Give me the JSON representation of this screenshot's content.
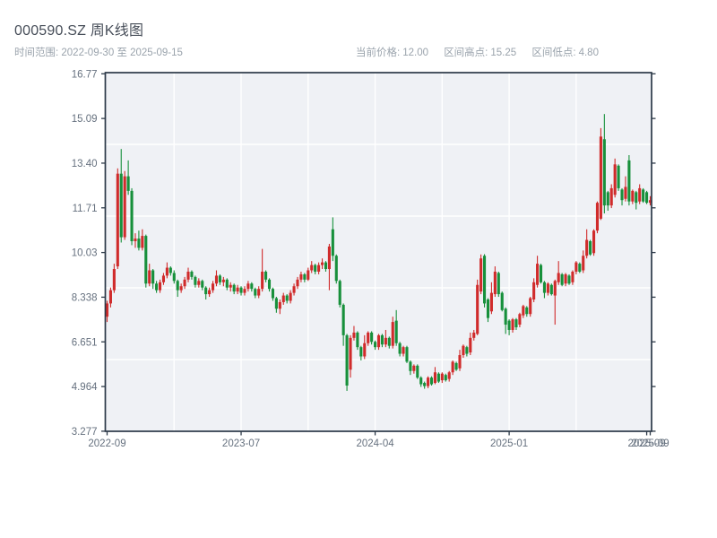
{
  "header": {
    "title": "000590.SZ 周K线图",
    "time_range": "时间范围: 2022-09-30 至 2025-09-15",
    "stats": [
      {
        "label": "当前价格:",
        "value": "12.00"
      },
      {
        "label": "区间高点:",
        "value": "15.25"
      },
      {
        "label": "区间低点:",
        "value": "4.80"
      }
    ]
  },
  "chart_data": {
    "type": "candlestick",
    "symbol": "000590.SZ",
    "interval": "weekly",
    "title": "000590.SZ 周K线图",
    "date_start": "2022-09-30",
    "date_end": "2025-09-15",
    "current_price": 12.0,
    "range_high": 15.25,
    "range_low": 4.8,
    "ylim": [
      3.277,
      16.77
    ],
    "y_tick_labels": [
      "16.77",
      "15.09",
      "13.40",
      "11.71",
      "10.03",
      "8.338",
      "6.651",
      "4.964",
      "3.277"
    ],
    "x_tick_labels": [
      "2022-09",
      "2023-07",
      "2024-04",
      "2025-01",
      "2025-09",
      "2025-09"
    ],
    "x_tick_indices": [
      0,
      38,
      76,
      114,
      153,
      154
    ],
    "x_grid_indices": [
      19,
      38,
      57,
      76,
      95,
      114,
      133
    ],
    "grid": true,
    "up_means": "close >= open (red, Chinese convention)",
    "colors": {
      "up": "#d02b2b",
      "down": "#17903b",
      "plot_bg": "#eff1f5",
      "grid": "#ffffff",
      "axis": "#2c3948",
      "tick_text": "#66717f",
      "title_text": "#474e59",
      "subtitle_text": "#9aa3ac"
    },
    "ohlc": [
      [
        7.6,
        8.2,
        7.4,
        8.1
      ],
      [
        8.1,
        8.7,
        7.95,
        8.6
      ],
      [
        8.6,
        9.6,
        8.5,
        9.4
      ],
      [
        9.5,
        13.2,
        9.4,
        13.0
      ],
      [
        13.0,
        13.93,
        10.4,
        10.6
      ],
      [
        10.6,
        13.1,
        10.5,
        12.9
      ],
      [
        12.9,
        13.5,
        12.2,
        12.35
      ],
      [
        12.35,
        12.45,
        10.3,
        10.45
      ],
      [
        10.45,
        10.75,
        10.2,
        10.55
      ],
      [
        10.55,
        10.85,
        10.1,
        10.2
      ],
      [
        10.2,
        10.9,
        10.1,
        10.65
      ],
      [
        10.65,
        10.7,
        8.7,
        8.85
      ],
      [
        8.85,
        9.6,
        8.75,
        9.35
      ],
      [
        9.35,
        9.4,
        8.65,
        8.85
      ],
      [
        8.85,
        8.95,
        8.5,
        8.6
      ],
      [
        8.6,
        9.0,
        8.5,
        8.9
      ],
      [
        8.9,
        9.25,
        8.8,
        9.15
      ],
      [
        9.15,
        9.65,
        9.05,
        9.45
      ],
      [
        9.45,
        9.5,
        9.15,
        9.25
      ],
      [
        9.25,
        9.35,
        8.85,
        8.95
      ],
      [
        8.95,
        9.0,
        8.35,
        8.6
      ],
      [
        8.6,
        8.85,
        8.5,
        8.75
      ],
      [
        8.75,
        9.1,
        8.65,
        9.0
      ],
      [
        9.0,
        9.45,
        8.9,
        9.3
      ],
      [
        9.3,
        9.35,
        9.0,
        9.1
      ],
      [
        9.1,
        9.15,
        8.7,
        8.8
      ],
      [
        8.8,
        9.05,
        8.7,
        8.95
      ],
      [
        8.95,
        9.0,
        8.6,
        8.7
      ],
      [
        8.7,
        8.75,
        8.25,
        8.45
      ],
      [
        8.45,
        8.7,
        8.35,
        8.6
      ],
      [
        8.6,
        8.95,
        8.5,
        8.85
      ],
      [
        8.85,
        9.35,
        8.75,
        9.15
      ],
      [
        9.15,
        9.2,
        8.8,
        8.9
      ],
      [
        8.9,
        9.1,
        8.75,
        9.0
      ],
      [
        9.0,
        9.05,
        8.6,
        8.7
      ],
      [
        8.7,
        8.9,
        8.55,
        8.8
      ],
      [
        8.8,
        8.85,
        8.45,
        8.55
      ],
      [
        8.55,
        8.8,
        8.45,
        8.7
      ],
      [
        8.7,
        8.75,
        8.4,
        8.5
      ],
      [
        8.5,
        8.75,
        8.4,
        8.65
      ],
      [
        8.65,
        8.95,
        8.55,
        8.85
      ],
      [
        8.85,
        8.9,
        8.55,
        8.65
      ],
      [
        8.65,
        8.7,
        8.3,
        8.4
      ],
      [
        8.4,
        8.75,
        8.3,
        8.65
      ],
      [
        8.65,
        10.16,
        8.55,
        9.3
      ],
      [
        9.3,
        9.35,
        8.9,
        9.0
      ],
      [
        9.0,
        9.05,
        8.55,
        8.65
      ],
      [
        8.65,
        8.7,
        8.2,
        8.3
      ],
      [
        8.3,
        8.35,
        7.75,
        7.9
      ],
      [
        7.9,
        8.25,
        7.7,
        8.15
      ],
      [
        8.15,
        8.5,
        8.05,
        8.4
      ],
      [
        8.4,
        8.45,
        8.1,
        8.2
      ],
      [
        8.2,
        8.6,
        8.1,
        8.5
      ],
      [
        8.5,
        8.85,
        8.4,
        8.75
      ],
      [
        8.75,
        9.1,
        8.65,
        9.0
      ],
      [
        9.0,
        9.3,
        8.9,
        9.2
      ],
      [
        9.2,
        9.25,
        8.9,
        9.0
      ],
      [
        9.0,
        9.45,
        8.95,
        9.35
      ],
      [
        9.35,
        9.7,
        9.25,
        9.55
      ],
      [
        9.55,
        9.6,
        9.2,
        9.3
      ],
      [
        9.3,
        9.65,
        9.2,
        9.55
      ],
      [
        9.55,
        9.8,
        9.4,
        9.65
      ],
      [
        9.65,
        9.7,
        9.3,
        9.4
      ],
      [
        9.4,
        10.35,
        8.6,
        10.25
      ],
      [
        10.9,
        11.35,
        9.7,
        9.9
      ],
      [
        9.9,
        9.95,
        8.85,
        8.95
      ],
      [
        8.95,
        9.0,
        7.95,
        8.05
      ],
      [
        8.05,
        8.1,
        6.5,
        6.9
      ],
      [
        6.9,
        6.95,
        4.8,
        5.0
      ],
      [
        5.6,
        6.9,
        5.3,
        6.8
      ],
      [
        6.8,
        7.25,
        6.7,
        7.0
      ],
      [
        7.0,
        7.05,
        6.35,
        6.45
      ],
      [
        6.45,
        6.5,
        5.95,
        6.1
      ],
      [
        6.1,
        6.9,
        6.0,
        6.6
      ],
      [
        6.6,
        7.05,
        6.5,
        7.0
      ],
      [
        7.0,
        7.05,
        6.55,
        6.65
      ],
      [
        6.65,
        6.7,
        6.35,
        6.45
      ],
      [
        6.45,
        6.95,
        6.35,
        6.9
      ],
      [
        6.9,
        6.95,
        6.45,
        6.55
      ],
      [
        6.55,
        7.1,
        6.45,
        6.8
      ],
      [
        6.8,
        6.85,
        6.4,
        6.5
      ],
      [
        6.5,
        7.6,
        6.4,
        7.4
      ],
      [
        7.45,
        7.85,
        6.5,
        6.6
      ],
      [
        6.6,
        6.65,
        6.1,
        6.2
      ],
      [
        6.2,
        6.5,
        6.1,
        6.45
      ],
      [
        6.45,
        6.5,
        5.85,
        5.9
      ],
      [
        5.9,
        5.95,
        5.4,
        5.55
      ],
      [
        5.55,
        5.8,
        5.45,
        5.75
      ],
      [
        5.75,
        5.8,
        5.25,
        5.3
      ],
      [
        5.3,
        5.35,
        4.95,
        5.05
      ],
      [
        5.1,
        5.15,
        4.88,
        4.98
      ],
      [
        4.98,
        5.35,
        4.9,
        5.3
      ],
      [
        5.3,
        5.35,
        5.0,
        5.05
      ],
      [
        5.1,
        5.7,
        5.05,
        5.5
      ],
      [
        5.45,
        5.5,
        5.1,
        5.15
      ],
      [
        5.2,
        5.5,
        5.1,
        5.45
      ],
      [
        5.4,
        5.45,
        5.15,
        5.2
      ],
      [
        5.25,
        5.55,
        5.15,
        5.5
      ],
      [
        5.5,
        5.95,
        5.4,
        5.9
      ],
      [
        5.85,
        5.9,
        5.55,
        5.6
      ],
      [
        5.65,
        6.35,
        5.55,
        6.15
      ],
      [
        6.15,
        6.55,
        6.05,
        6.5
      ],
      [
        6.45,
        6.5,
        6.1,
        6.2
      ],
      [
        6.25,
        7.0,
        6.15,
        6.8
      ],
      [
        6.8,
        7.1,
        6.7,
        7.0
      ],
      [
        6.95,
        9.0,
        6.9,
        8.8
      ],
      [
        8.55,
        9.95,
        8.45,
        9.8
      ],
      [
        9.9,
        9.96,
        7.95,
        8.1
      ],
      [
        8.25,
        8.3,
        7.4,
        7.55
      ],
      [
        7.8,
        8.9,
        7.7,
        8.5
      ],
      [
        8.45,
        9.5,
        8.35,
        9.3
      ],
      [
        9.25,
        9.3,
        8.35,
        8.45
      ],
      [
        8.5,
        8.55,
        7.8,
        7.85
      ],
      [
        7.9,
        7.95,
        6.95,
        7.3
      ],
      [
        7.45,
        7.5,
        6.9,
        7.1
      ],
      [
        7.1,
        7.55,
        7.0,
        7.5
      ],
      [
        7.5,
        7.55,
        7.1,
        7.2
      ],
      [
        7.3,
        7.75,
        7.2,
        7.7
      ],
      [
        7.65,
        8.05,
        7.55,
        8.0
      ],
      [
        7.95,
        8.0,
        7.6,
        7.7
      ],
      [
        7.7,
        8.35,
        7.6,
        8.3
      ],
      [
        8.25,
        9.05,
        8.15,
        8.9
      ],
      [
        8.8,
        9.9,
        8.7,
        9.6
      ],
      [
        9.55,
        9.6,
        8.85,
        8.9
      ],
      [
        8.9,
        8.95,
        8.3,
        8.5
      ],
      [
        8.5,
        8.9,
        8.4,
        8.85
      ],
      [
        8.8,
        8.85,
        8.4,
        8.45
      ],
      [
        8.4,
        9.0,
        7.3,
        8.95
      ],
      [
        8.9,
        9.7,
        8.8,
        9.25
      ],
      [
        9.2,
        9.25,
        8.75,
        8.8
      ],
      [
        8.85,
        9.25,
        8.75,
        9.2
      ],
      [
        9.15,
        9.2,
        8.8,
        8.85
      ],
      [
        8.9,
        9.35,
        8.8,
        9.3
      ],
      [
        9.3,
        9.7,
        9.2,
        9.65
      ],
      [
        9.6,
        9.65,
        9.25,
        9.3
      ],
      [
        9.35,
        10.1,
        9.25,
        9.9
      ],
      [
        9.9,
        10.9,
        9.8,
        10.5
      ],
      [
        10.45,
        10.5,
        9.9,
        9.95
      ],
      [
        10.0,
        10.9,
        9.9,
        10.85
      ],
      [
        10.85,
        11.95,
        10.75,
        11.9
      ],
      [
        11.3,
        14.72,
        11.25,
        14.4
      ],
      [
        14.3,
        15.25,
        11.5,
        11.8
      ],
      [
        12.3,
        12.35,
        11.6,
        11.8
      ],
      [
        11.8,
        12.6,
        11.7,
        12.45
      ],
      [
        12.2,
        13.57,
        12.1,
        13.35
      ],
      [
        13.3,
        13.35,
        12.35,
        12.45
      ],
      [
        12.4,
        12.45,
        11.8,
        12.0
      ],
      [
        12.05,
        12.9,
        11.95,
        12.5
      ],
      [
        13.5,
        13.7,
        11.8,
        11.95
      ],
      [
        11.95,
        12.4,
        11.85,
        12.35
      ],
      [
        12.3,
        12.35,
        11.65,
        11.9
      ],
      [
        11.95,
        12.6,
        11.85,
        12.45
      ],
      [
        12.4,
        12.45,
        11.9,
        11.95
      ],
      [
        12.3,
        12.35,
        11.85,
        11.9
      ],
      [
        11.9,
        12.15,
        11.8,
        12.0
      ]
    ]
  }
}
